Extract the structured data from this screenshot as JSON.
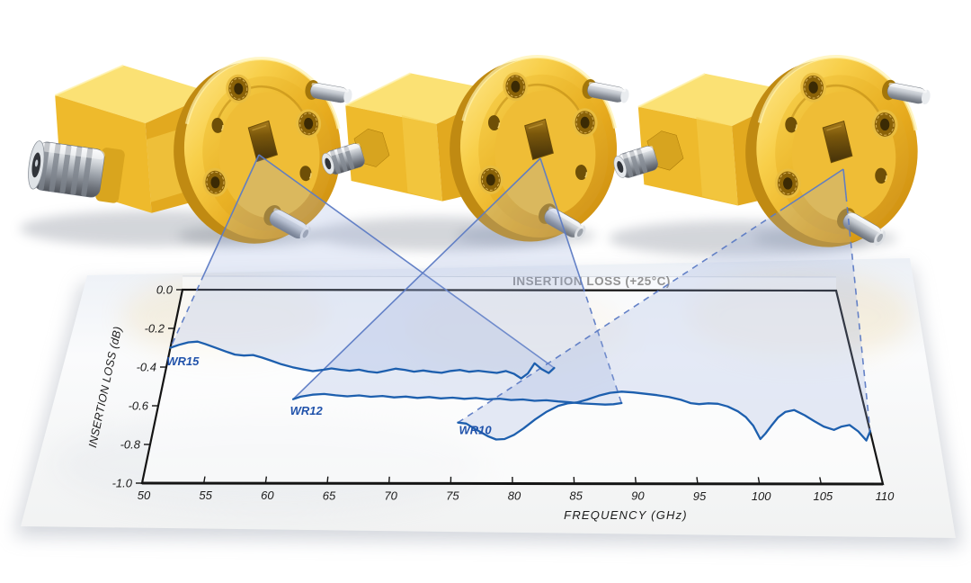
{
  "page": {
    "background": "#ffffff",
    "description_title": "INSERTION LOSS (+25°C)"
  },
  "chart_data": {
    "type": "line",
    "title": "INSERTION LOSS (+25°C)",
    "xlabel": "FREQUENCY  (GHz)",
    "ylabel": "INSERTION LOSS (dB)",
    "xlim": [
      50,
      110
    ],
    "ylim": [
      -1.0,
      0.0
    ],
    "xticks": [
      50,
      55,
      60,
      65,
      70,
      75,
      80,
      85,
      90,
      95,
      100,
      105,
      110
    ],
    "yticks": [
      0,
      -0.2,
      -0.4,
      -0.6,
      -0.8,
      -1
    ],
    "grid": false,
    "legend": "inline-curve-labels",
    "series": [
      {
        "name": "WR15",
        "color": "#1d5fae",
        "label_at": [
          50.3,
          -0.39
        ],
        "points": [
          [
            50,
            -0.3
          ],
          [
            50.7,
            -0.285
          ],
          [
            51.5,
            -0.272
          ],
          [
            52.3,
            -0.268
          ],
          [
            53,
            -0.28
          ],
          [
            54,
            -0.3
          ],
          [
            55,
            -0.32
          ],
          [
            55.8,
            -0.335
          ],
          [
            56.6,
            -0.34
          ],
          [
            57.4,
            -0.337
          ],
          [
            58.2,
            -0.35
          ],
          [
            59,
            -0.365
          ],
          [
            60,
            -0.385
          ],
          [
            61,
            -0.4
          ],
          [
            62,
            -0.412
          ],
          [
            62.8,
            -0.42
          ],
          [
            63.6,
            -0.414
          ],
          [
            64.4,
            -0.406
          ],
          [
            65.2,
            -0.413
          ],
          [
            66,
            -0.418
          ],
          [
            66.8,
            -0.412
          ],
          [
            67.6,
            -0.422
          ],
          [
            68.4,
            -0.427
          ],
          [
            69.2,
            -0.417
          ],
          [
            70,
            -0.407
          ],
          [
            70.8,
            -0.413
          ],
          [
            71.6,
            -0.422
          ],
          [
            72.4,
            -0.416
          ],
          [
            73.2,
            -0.423
          ],
          [
            74,
            -0.428
          ],
          [
            74.8,
            -0.418
          ],
          [
            75.6,
            -0.413
          ],
          [
            76.4,
            -0.422
          ],
          [
            77.2,
            -0.417
          ],
          [
            78,
            -0.423
          ],
          [
            78.8,
            -0.428
          ],
          [
            79.6,
            -0.418
          ],
          [
            80.3,
            -0.433
          ],
          [
            80.9,
            -0.456
          ],
          [
            81.5,
            -0.43
          ],
          [
            82.1,
            -0.378
          ],
          [
            82.7,
            -0.408
          ],
          [
            83.3,
            -0.428
          ],
          [
            83.8,
            -0.402
          ]
        ]
      },
      {
        "name": "WR12",
        "color": "#1d5fae",
        "label_at": [
          61.6,
          -0.645
        ],
        "points": [
          [
            61.4,
            -0.565
          ],
          [
            62,
            -0.552
          ],
          [
            63,
            -0.542
          ],
          [
            64,
            -0.538
          ],
          [
            65,
            -0.545
          ],
          [
            66,
            -0.55
          ],
          [
            67,
            -0.545
          ],
          [
            68,
            -0.552
          ],
          [
            69,
            -0.548
          ],
          [
            70,
            -0.555
          ],
          [
            71,
            -0.551
          ],
          [
            72,
            -0.558
          ],
          [
            73,
            -0.553
          ],
          [
            74,
            -0.56
          ],
          [
            75,
            -0.556
          ],
          [
            76,
            -0.562
          ],
          [
            77,
            -0.558
          ],
          [
            78,
            -0.565
          ],
          [
            79,
            -0.561
          ],
          [
            80,
            -0.568
          ],
          [
            81,
            -0.565
          ],
          [
            82,
            -0.572
          ],
          [
            83,
            -0.569
          ],
          [
            84,
            -0.575
          ],
          [
            85,
            -0.579
          ],
          [
            86,
            -0.585
          ],
          [
            87,
            -0.588
          ],
          [
            88,
            -0.591
          ],
          [
            88.7,
            -0.589
          ],
          [
            89.4,
            -0.583
          ]
        ]
      },
      {
        "name": "WR10",
        "color": "#1d5fae",
        "label_at": [
          75.9,
          -0.745
        ],
        "points": [
          [
            75.5,
            -0.685
          ],
          [
            76.2,
            -0.69
          ],
          [
            77,
            -0.72
          ],
          [
            78,
            -0.755
          ],
          [
            78.7,
            -0.772
          ],
          [
            79.4,
            -0.77
          ],
          [
            80.2,
            -0.748
          ],
          [
            81,
            -0.715
          ],
          [
            82,
            -0.668
          ],
          [
            83,
            -0.628
          ],
          [
            84,
            -0.598
          ],
          [
            84.8,
            -0.585
          ],
          [
            85.6,
            -0.58
          ],
          [
            86.5,
            -0.565
          ],
          [
            87.5,
            -0.545
          ],
          [
            88.5,
            -0.53
          ],
          [
            89.5,
            -0.524
          ],
          [
            90.5,
            -0.528
          ],
          [
            91.5,
            -0.535
          ],
          [
            92.5,
            -0.542
          ],
          [
            93.5,
            -0.551
          ],
          [
            94.5,
            -0.566
          ],
          [
            95.3,
            -0.583
          ],
          [
            96,
            -0.588
          ],
          [
            96.8,
            -0.584
          ],
          [
            97.6,
            -0.586
          ],
          [
            98.4,
            -0.6
          ],
          [
            99.2,
            -0.625
          ],
          [
            99.8,
            -0.655
          ],
          [
            100.3,
            -0.7
          ],
          [
            100.7,
            -0.768
          ],
          [
            101.2,
            -0.74
          ],
          [
            101.8,
            -0.7
          ],
          [
            102.5,
            -0.657
          ],
          [
            103.2,
            -0.628
          ],
          [
            104,
            -0.618
          ],
          [
            104.8,
            -0.645
          ],
          [
            105.5,
            -0.675
          ],
          [
            106.2,
            -0.703
          ],
          [
            107,
            -0.72
          ],
          [
            107.7,
            -0.703
          ],
          [
            108.4,
            -0.695
          ],
          [
            109,
            -0.728
          ],
          [
            109.5,
            -0.775
          ],
          [
            110,
            -0.727
          ]
        ]
      }
    ]
  },
  "callouts": [
    {
      "name": "callout-wr15",
      "series": "WR15",
      "apex": [
        288,
        172
      ],
      "left_dash_from": 0.62,
      "right_dash_from": 0
    },
    {
      "name": "callout-wr12",
      "series": "WR12",
      "apex": [
        601,
        176
      ],
      "left_dash_from": 0,
      "right_dash_from": 0.52
    },
    {
      "name": "callout-wr10",
      "series": "WR10",
      "apex": [
        938,
        188
      ],
      "left_dash_from": 0.15,
      "right_dash_from": 0.1
    }
  ],
  "colors": {
    "curve_blue": "#1d5fae",
    "series_label_blue": "#2153ab",
    "callout_stroke": "#5d7cc5",
    "callout_fill": "#96abdd",
    "axis": "#141414",
    "tick_text": "#1c1c1c",
    "title_text": "#262626",
    "paper": "#fafbfc",
    "gold": "#f2c43a",
    "silver": "#c9cdd3"
  }
}
